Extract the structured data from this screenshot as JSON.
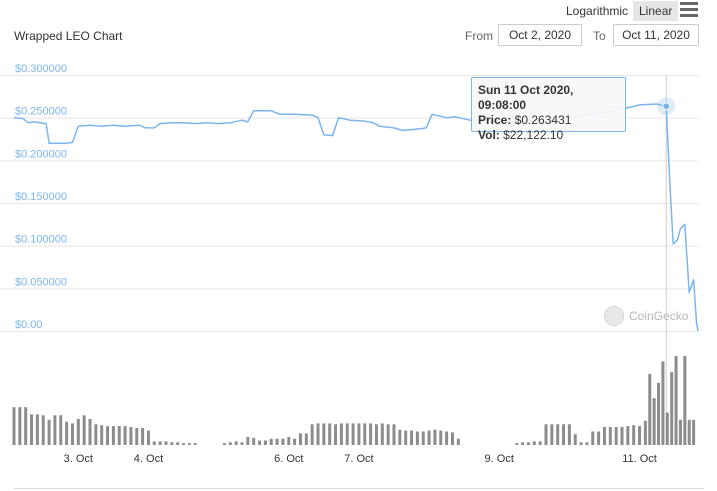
{
  "toolbar": {
    "log_label": "Logarithmic",
    "linear_label": "Linear",
    "menu_icon": "hamburger-menu-icon"
  },
  "header": {
    "title": "Wrapped LEO Chart",
    "from_label": "From",
    "from_value": "Oct 2, 2020",
    "to_label": "To",
    "to_value": "Oct 11, 2020"
  },
  "tooltip": {
    "date": "Sun 11 Oct 2020, 09:08:00",
    "price_label": "Price:",
    "price_value": "$0.263431",
    "vol_label": "Vol:",
    "vol_value": "$22,122.10"
  },
  "watermark": "CoinGecko",
  "colors": {
    "line": "#7cb5ec",
    "volume": "#8c8c8c",
    "axis_text": "#7cb5ec",
    "grid": "#e6e6e6"
  },
  "chart_data": {
    "type": "line",
    "ylabel_ticks": [
      "$0.300000",
      "$0.250000",
      "$0.200000",
      "$0.150000",
      "$0.100000",
      "$0.050000",
      "$0.00"
    ],
    "ylim": [
      0,
      0.3
    ],
    "xlim": [
      "2020-10-02T02:00",
      "2020-10-11T20:00"
    ],
    "x_ticks": [
      "3. Oct",
      "4. Oct",
      "6. Oct",
      "7. Oct",
      "9. Oct",
      "11. Oct"
    ],
    "x_tick_dates": [
      "2020-10-03",
      "2020-10-04",
      "2020-10-06",
      "2020-10-07",
      "2020-10-09",
      "2020-10-11"
    ],
    "highlight": {
      "x": "2020-10-11T09:08",
      "y": 0.263431
    },
    "price": [
      [
        "2020-10-02T02:00",
        0.25
      ],
      [
        "2020-10-02T05:00",
        0.249
      ],
      [
        "2020-10-02T07:00",
        0.244
      ],
      [
        "2020-10-02T09:00",
        0.245
      ],
      [
        "2020-10-02T13:00",
        0.243
      ],
      [
        "2020-10-02T14:00",
        0.22
      ],
      [
        "2020-10-02T20:00",
        0.22
      ],
      [
        "2020-10-02T22:00",
        0.221
      ],
      [
        "2020-10-03T00:00",
        0.24
      ],
      [
        "2020-10-03T04:00",
        0.241
      ],
      [
        "2020-10-03T08:00",
        0.24
      ],
      [
        "2020-10-03T12:00",
        0.241
      ],
      [
        "2020-10-03T16:00",
        0.24
      ],
      [
        "2020-10-03T21:00",
        0.241
      ],
      [
        "2020-10-03T23:00",
        0.238
      ],
      [
        "2020-10-04T02:00",
        0.238
      ],
      [
        "2020-10-04T04:00",
        0.243
      ],
      [
        "2020-10-04T08:00",
        0.244
      ],
      [
        "2020-10-04T12:00",
        0.244
      ],
      [
        "2020-10-04T16:00",
        0.243
      ],
      [
        "2020-10-04T20:00",
        0.244
      ],
      [
        "2020-10-05T00:00",
        0.243
      ],
      [
        "2020-10-05T04:00",
        0.244
      ],
      [
        "2020-10-05T08:00",
        0.247
      ],
      [
        "2020-10-05T10:00",
        0.245
      ],
      [
        "2020-10-05T12:00",
        0.258
      ],
      [
        "2020-10-05T18:00",
        0.258
      ],
      [
        "2020-10-05T21:00",
        0.254
      ],
      [
        "2020-10-06T02:00",
        0.254
      ],
      [
        "2020-10-06T08:00",
        0.253
      ],
      [
        "2020-10-06T10:00",
        0.25
      ],
      [
        "2020-10-06T12:00",
        0.23
      ],
      [
        "2020-10-06T15:00",
        0.229
      ],
      [
        "2020-10-06T17:00",
        0.25
      ],
      [
        "2020-10-06T21:00",
        0.247
      ],
      [
        "2020-10-07T02:00",
        0.246
      ],
      [
        "2020-10-07T05:00",
        0.244
      ],
      [
        "2020-10-07T07:00",
        0.24
      ],
      [
        "2020-10-07T12:00",
        0.238
      ],
      [
        "2020-10-07T15:00",
        0.235
      ],
      [
        "2020-10-07T21:00",
        0.237
      ],
      [
        "2020-10-07T23:00",
        0.238
      ],
      [
        "2020-10-08T01:00",
        0.254
      ],
      [
        "2020-10-08T06:00",
        0.25
      ],
      [
        "2020-10-08T09:00",
        0.251
      ],
      [
        "2020-10-08T14:00",
        0.247
      ],
      [
        "2020-10-08T19:00",
        0.246
      ],
      [
        "2020-10-09T00:00",
        0.245
      ],
      [
        "2020-10-09T06:00",
        0.246
      ],
      [
        "2020-10-09T12:00",
        0.247
      ],
      [
        "2020-10-09T18:00",
        0.245
      ],
      [
        "2020-10-10T00:00",
        0.25
      ],
      [
        "2020-10-10T06:00",
        0.253
      ],
      [
        "2020-10-10T12:00",
        0.256
      ],
      [
        "2020-10-10T18:00",
        0.26
      ],
      [
        "2020-10-11T00:00",
        0.265
      ],
      [
        "2020-10-11T06:00",
        0.266
      ],
      [
        "2020-10-11T09:08",
        0.263
      ],
      [
        "2020-10-11T10:30",
        0.165
      ],
      [
        "2020-10-11T11:30",
        0.102
      ],
      [
        "2020-10-11T13:00",
        0.107
      ],
      [
        "2020-10-11T14:00",
        0.12
      ],
      [
        "2020-10-11T15:30",
        0.125
      ],
      [
        "2020-10-11T17:00",
        0.045
      ],
      [
        "2020-10-11T18:30",
        0.06
      ],
      [
        "2020-10-11T19:30",
        0.01
      ],
      [
        "2020-10-11T20:00",
        0.0
      ]
    ],
    "volume": [
      [
        "2020-10-02T02:00",
        0.42
      ],
      [
        "2020-10-02T04:00",
        0.42
      ],
      [
        "2020-10-02T06:00",
        0.42
      ],
      [
        "2020-10-02T08:00",
        0.34
      ],
      [
        "2020-10-02T10:00",
        0.34
      ],
      [
        "2020-10-02T12:00",
        0.33
      ],
      [
        "2020-10-02T14:00",
        0.28
      ],
      [
        "2020-10-02T16:00",
        0.33
      ],
      [
        "2020-10-02T18:00",
        0.33
      ],
      [
        "2020-10-02T20:00",
        0.26
      ],
      [
        "2020-10-02T22:00",
        0.24
      ],
      [
        "2020-10-03T00:00",
        0.29
      ],
      [
        "2020-10-03T02:00",
        0.33
      ],
      [
        "2020-10-03T04:00",
        0.29
      ],
      [
        "2020-10-03T06:00",
        0.23
      ],
      [
        "2020-10-03T08:00",
        0.22
      ],
      [
        "2020-10-03T10:00",
        0.21
      ],
      [
        "2020-10-03T12:00",
        0.21
      ],
      [
        "2020-10-03T14:00",
        0.21
      ],
      [
        "2020-10-03T16:00",
        0.21
      ],
      [
        "2020-10-03T18:00",
        0.2
      ],
      [
        "2020-10-03T20:00",
        0.19
      ],
      [
        "2020-10-03T22:00",
        0.19
      ],
      [
        "2020-10-04T00:00",
        0.16
      ],
      [
        "2020-10-04T02:00",
        0.04
      ],
      [
        "2020-10-04T04:00",
        0.04
      ],
      [
        "2020-10-04T06:00",
        0.04
      ],
      [
        "2020-10-04T08:00",
        0.03
      ],
      [
        "2020-10-04T10:00",
        0.03
      ],
      [
        "2020-10-04T12:00",
        0.02
      ],
      [
        "2020-10-04T14:00",
        0.02
      ],
      [
        "2020-10-04T16:00",
        0.02
      ],
      [
        "2020-10-05T02:00",
        0.02
      ],
      [
        "2020-10-05T04:00",
        0.03
      ],
      [
        "2020-10-05T06:00",
        0.04
      ],
      [
        "2020-10-05T08:00",
        0.03
      ],
      [
        "2020-10-05T10:00",
        0.09
      ],
      [
        "2020-10-05T12:00",
        0.08
      ],
      [
        "2020-10-05T14:00",
        0.05
      ],
      [
        "2020-10-05T16:00",
        0.05
      ],
      [
        "2020-10-05T18:00",
        0.07
      ],
      [
        "2020-10-05T20:00",
        0.07
      ],
      [
        "2020-10-05T22:00",
        0.07
      ],
      [
        "2020-10-06T00:00",
        0.09
      ],
      [
        "2020-10-06T02:00",
        0.07
      ],
      [
        "2020-10-06T04:00",
        0.13
      ],
      [
        "2020-10-06T06:00",
        0.13
      ],
      [
        "2020-10-06T08:00",
        0.23
      ],
      [
        "2020-10-06T10:00",
        0.24
      ],
      [
        "2020-10-06T12:00",
        0.24
      ],
      [
        "2020-10-06T14:00",
        0.24
      ],
      [
        "2020-10-06T16:00",
        0.23
      ],
      [
        "2020-10-06T18:00",
        0.24
      ],
      [
        "2020-10-06T20:00",
        0.24
      ],
      [
        "2020-10-06T22:00",
        0.24
      ],
      [
        "2020-10-07T00:00",
        0.24
      ],
      [
        "2020-10-07T02:00",
        0.24
      ],
      [
        "2020-10-07T04:00",
        0.24
      ],
      [
        "2020-10-07T06:00",
        0.23
      ],
      [
        "2020-10-07T08:00",
        0.24
      ],
      [
        "2020-10-07T10:00",
        0.23
      ],
      [
        "2020-10-07T12:00",
        0.23
      ],
      [
        "2020-10-07T14:00",
        0.17
      ],
      [
        "2020-10-07T16:00",
        0.16
      ],
      [
        "2020-10-07T18:00",
        0.16
      ],
      [
        "2020-10-07T20:00",
        0.15
      ],
      [
        "2020-10-07T22:00",
        0.15
      ],
      [
        "2020-10-08T00:00",
        0.16
      ],
      [
        "2020-10-08T02:00",
        0.17
      ],
      [
        "2020-10-08T04:00",
        0.16
      ],
      [
        "2020-10-08T06:00",
        0.15
      ],
      [
        "2020-10-08T08:00",
        0.14
      ],
      [
        "2020-10-08T10:00",
        0.07
      ],
      [
        "2020-10-09T06:00",
        0.02
      ],
      [
        "2020-10-09T08:00",
        0.03
      ],
      [
        "2020-10-09T10:00",
        0.03
      ],
      [
        "2020-10-09T12:00",
        0.04
      ],
      [
        "2020-10-09T14:00",
        0.04
      ],
      [
        "2020-10-09T16:00",
        0.23
      ],
      [
        "2020-10-09T18:00",
        0.23
      ],
      [
        "2020-10-09T20:00",
        0.23
      ],
      [
        "2020-10-09T22:00",
        0.23
      ],
      [
        "2020-10-10T00:00",
        0.23
      ],
      [
        "2020-10-10T02:00",
        0.12
      ],
      [
        "2020-10-10T04:00",
        0.03
      ],
      [
        "2020-10-10T06:00",
        0.03
      ],
      [
        "2020-10-10T08:00",
        0.15
      ],
      [
        "2020-10-10T10:00",
        0.15
      ],
      [
        "2020-10-10T12:00",
        0.2
      ],
      [
        "2020-10-10T14:00",
        0.2
      ],
      [
        "2020-10-10T16:00",
        0.2
      ],
      [
        "2020-10-10T18:00",
        0.2
      ],
      [
        "2020-10-10T20:00",
        0.21
      ],
      [
        "2020-10-10T22:00",
        0.22
      ],
      [
        "2020-10-11T00:00",
        0.21
      ],
      [
        "2020-10-11T02:00",
        0.27
      ],
      [
        "2020-10-11T03:30",
        0.79
      ],
      [
        "2020-10-11T05:00",
        0.52
      ],
      [
        "2020-10-11T06:30",
        0.69
      ],
      [
        "2020-10-11T08:00",
        0.93
      ],
      [
        "2020-10-11T09:30",
        0.36
      ],
      [
        "2020-10-11T11:00",
        0.81
      ],
      [
        "2020-10-11T12:30",
        0.99
      ],
      [
        "2020-10-11T14:00",
        0.28
      ],
      [
        "2020-10-11T15:30",
        0.99
      ],
      [
        "2020-10-11T17:00",
        0.28
      ],
      [
        "2020-10-11T18:30",
        0.28
      ]
    ]
  }
}
